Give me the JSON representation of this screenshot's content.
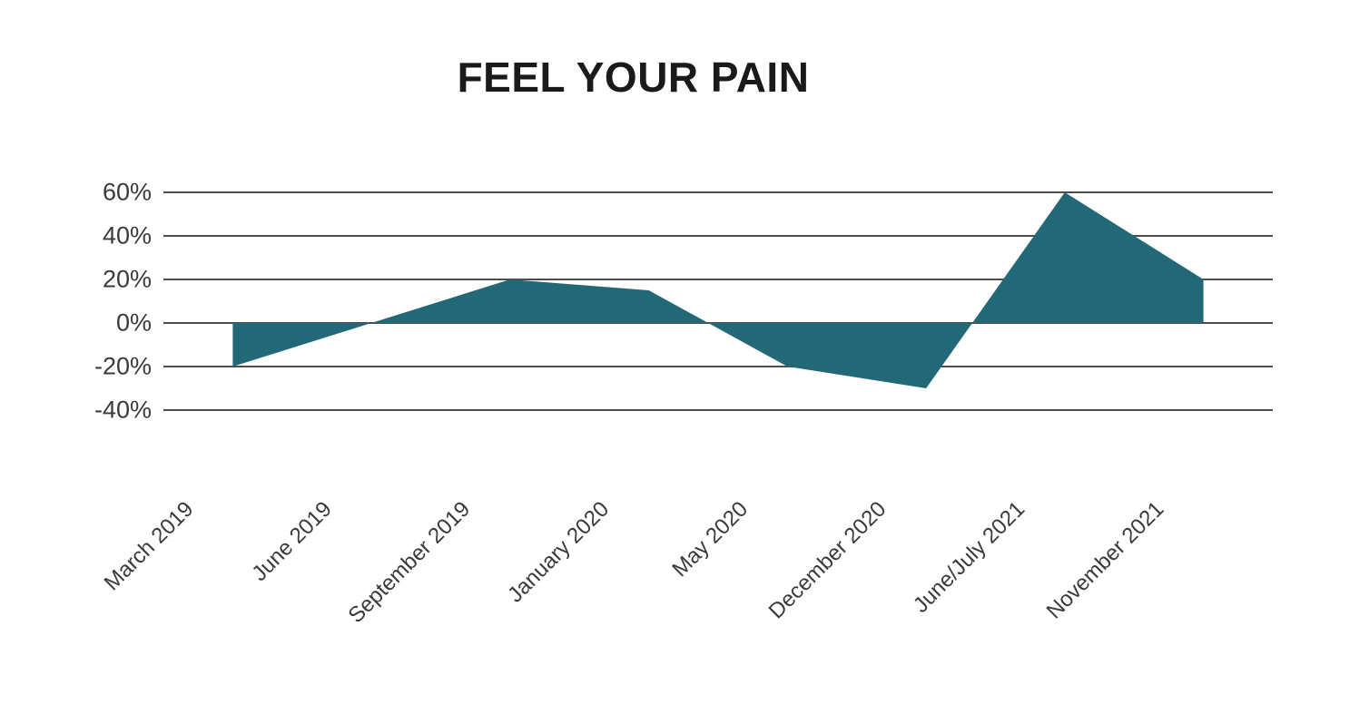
{
  "title": "FEEL YOUR PAIN",
  "chart_data": {
    "type": "area",
    "title": "FEEL YOUR PAIN",
    "categories": [
      "March 2019",
      "June 2019",
      "September 2019",
      "January 2020",
      "May 2020",
      "December 2020",
      "June/July 2021",
      "November 2021"
    ],
    "values": [
      -20,
      0,
      20,
      15,
      -20,
      -30,
      60,
      20
    ],
    "unit": "%",
    "xlabel": "",
    "ylabel": "",
    "ylim": [
      -40,
      60
    ],
    "baseline": 0,
    "grid": "horizontal",
    "legend_position": "none",
    "y_ticks": {
      "labels": [
        "60%",
        "40%",
        "20%",
        "0%",
        "-20%",
        "-40%"
      ],
      "values": [
        60,
        40,
        20,
        0,
        -20,
        -40
      ]
    },
    "x_label_rotation_deg": 45,
    "colors": {
      "area_fill": "#226877",
      "gridline": "#4d4d4d",
      "tick_text": "#3a3a3a",
      "title_text": "#1a1a1a",
      "background": "#ffffff"
    }
  }
}
